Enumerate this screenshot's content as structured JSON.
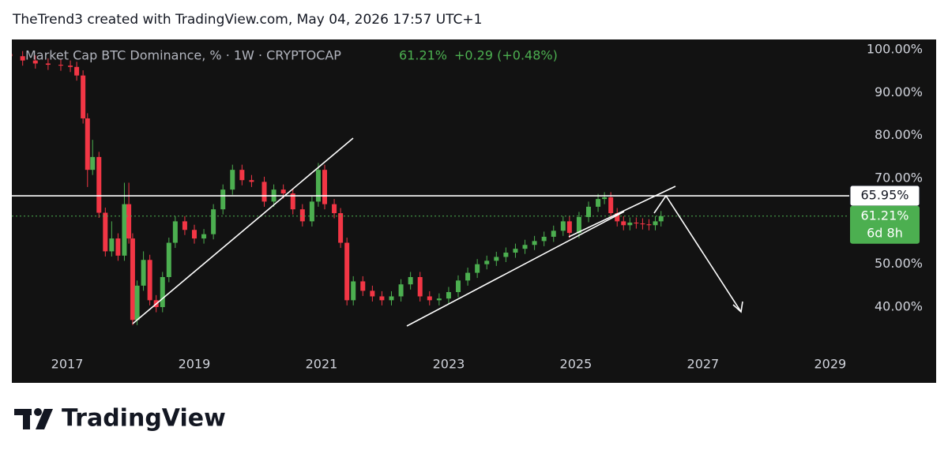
{
  "header": "TheTrend3 created with TradingView.com, May 04, 2026 17:57 UTC+1",
  "footer_logo": "TradingView",
  "chart_data": {
    "type": "candlestick",
    "legend": {
      "name": "Market Cap BTC Dominance, % · 1W · CRYPTOCAP",
      "last": "61.21%",
      "change": "+0.29 (+0.48%)"
    },
    "up_color": "#4caf50",
    "down_color": "#f23645",
    "x": [
      2016.1,
      2016.3,
      2016.5,
      2016.7,
      2016.9,
      2017.05,
      2017.15,
      2017.25,
      2017.32,
      2017.4,
      2017.5,
      2017.6,
      2017.7,
      2017.8,
      2017.9,
      2017.97,
      2018.03,
      2018.1,
      2018.2,
      2018.3,
      2018.4,
      2018.5,
      2018.6,
      2018.7,
      2018.85,
      2019.0,
      2019.15,
      2019.3,
      2019.45,
      2019.6,
      2019.75,
      2019.9,
      2020.1,
      2020.25,
      2020.4,
      2020.55,
      2020.7,
      2020.85,
      2020.95,
      2021.05,
      2021.2,
      2021.3,
      2021.4,
      2021.5,
      2021.65,
      2021.8,
      2021.95,
      2022.1,
      2022.25,
      2022.4,
      2022.55,
      2022.7,
      2022.85,
      2023.0,
      2023.15,
      2023.3,
      2023.45,
      2023.6,
      2023.75,
      2023.9,
      2024.05,
      2024.2,
      2024.35,
      2024.5,
      2024.65,
      2024.8,
      2024.9,
      2025.05,
      2025.2,
      2025.35,
      2025.45,
      2025.55,
      2025.65,
      2025.75,
      2025.85,
      2025.95,
      2026.05,
      2026.15,
      2026.25,
      2026.34
    ],
    "open": [
      99,
      98.5,
      97.5,
      96.8,
      96.5,
      96.3,
      96,
      94,
      84,
      72,
      75,
      62,
      53,
      56,
      52,
      64,
      56,
      37,
      45,
      51,
      41.6,
      40,
      47,
      55,
      60,
      58,
      56,
      57,
      62.8,
      67.4,
      72,
      69.6,
      69.2,
      64.6,
      67.4,
      66.5,
      62.8,
      60,
      64.6,
      72,
      64,
      61.9,
      55,
      41.6,
      46,
      43.8,
      42.5,
      41.6,
      42.5,
      45.3,
      47,
      42.5,
      41.6,
      42,
      43.5,
      46.2,
      48,
      50,
      50.8,
      51.7,
      52.7,
      53.6,
      54.5,
      55.4,
      56.4,
      57.8,
      60,
      57.3,
      61,
      63.4,
      65.2,
      65.6,
      61.9,
      60,
      59.1,
      59.7,
      59.5,
      59.3,
      59.1,
      60
    ],
    "high": [
      100.2,
      99.7,
      98.7,
      98,
      97.7,
      97.5,
      97.2,
      95.2,
      85.2,
      79,
      76.2,
      63.2,
      60,
      57.2,
      69,
      69,
      57.2,
      46.2,
      53,
      52.2,
      42.8,
      48.2,
      56.2,
      61.2,
      61.2,
      59.2,
      58.2,
      64,
      68.6,
      73.2,
      73.2,
      70.8,
      70.4,
      68.6,
      68.6,
      67.7,
      64,
      65.8,
      73.6,
      73.2,
      65.2,
      63.1,
      56.2,
      47.2,
      47.2,
      45,
      43.7,
      43.7,
      46.5,
      48.2,
      48.2,
      43.7,
      43.2,
      44.7,
      47.4,
      49.2,
      51.2,
      52,
      52.9,
      53.9,
      54.8,
      55.7,
      56.6,
      57.6,
      59,
      61.2,
      61.2,
      62.2,
      64.6,
      66.4,
      66.8,
      66.8,
      63.1,
      61.2,
      60.9,
      60.9,
      60.7,
      60.5,
      61.2,
      62.4
    ],
    "low": [
      97.3,
      96.3,
      95.6,
      95.3,
      95.1,
      94.8,
      92.8,
      82.8,
      68,
      70.8,
      60.8,
      51.8,
      51.8,
      50.8,
      50.8,
      54.8,
      35.8,
      35.8,
      43.8,
      40.4,
      38.8,
      38.8,
      45.8,
      53.8,
      56.8,
      54.8,
      54.8,
      55.8,
      61.6,
      66.2,
      68.4,
      68,
      63.4,
      63.4,
      65.3,
      61.6,
      58.8,
      58.8,
      63.4,
      62.8,
      60.7,
      53.8,
      40.4,
      40.4,
      42.6,
      41.3,
      40.4,
      40.4,
      41.3,
      44.1,
      41.3,
      40.4,
      40.4,
      40.8,
      42.3,
      45,
      46.8,
      48.8,
      49.6,
      50.5,
      51.5,
      52.4,
      53.3,
      54.2,
      55.2,
      56.6,
      56.1,
      56.1,
      59.8,
      62.2,
      64,
      60.7,
      58.8,
      57.9,
      57.9,
      58.3,
      58.1,
      57.9,
      57.9,
      58.8
    ],
    "close": [
      98.5,
      97.5,
      96.8,
      96.5,
      96.3,
      96,
      94,
      84,
      72,
      75,
      62,
      53,
      56,
      52,
      64,
      56,
      37,
      45,
      51,
      41.6,
      40,
      47,
      55,
      60,
      58,
      56,
      57,
      62.8,
      67.4,
      72,
      69.6,
      69.2,
      64.6,
      67.4,
      66.5,
      62.8,
      60,
      64.6,
      72,
      64,
      61.9,
      55,
      41.6,
      46,
      43.8,
      42.5,
      41.6,
      42.5,
      45.3,
      47,
      42.5,
      41.6,
      42,
      43.5,
      46.2,
      48,
      50,
      50.8,
      51.7,
      52.7,
      53.6,
      54.5,
      55.4,
      56.4,
      57.8,
      60,
      57.3,
      61,
      63.4,
      65.2,
      65.6,
      61.9,
      60,
      59.1,
      59.7,
      59.5,
      59.3,
      59.1,
      60,
      61.21
    ],
    "xlim": [
      2016.13,
      2029.3
    ],
    "xticks": [
      2017,
      2019,
      2021,
      2023,
      2025,
      2027,
      2029
    ],
    "ylim": [
      29.7,
      102.4
    ],
    "yticks": [
      {
        "value": 100,
        "label": "100.00%"
      },
      {
        "value": 90,
        "label": "90.00%"
      },
      {
        "value": 80,
        "label": "80.00%"
      },
      {
        "value": 70,
        "label": "70.00%"
      },
      {
        "value": 50,
        "label": "50.00%"
      },
      {
        "value": 40,
        "label": "40.00%"
      }
    ],
    "hlines": [
      {
        "value": 65.95,
        "label": "65.95%",
        "color": "#ffffff"
      },
      {
        "value": 61.21,
        "label": "61.21%",
        "color": "#4caf50",
        "countdown": "6d 8h"
      }
    ],
    "grid": false
  }
}
